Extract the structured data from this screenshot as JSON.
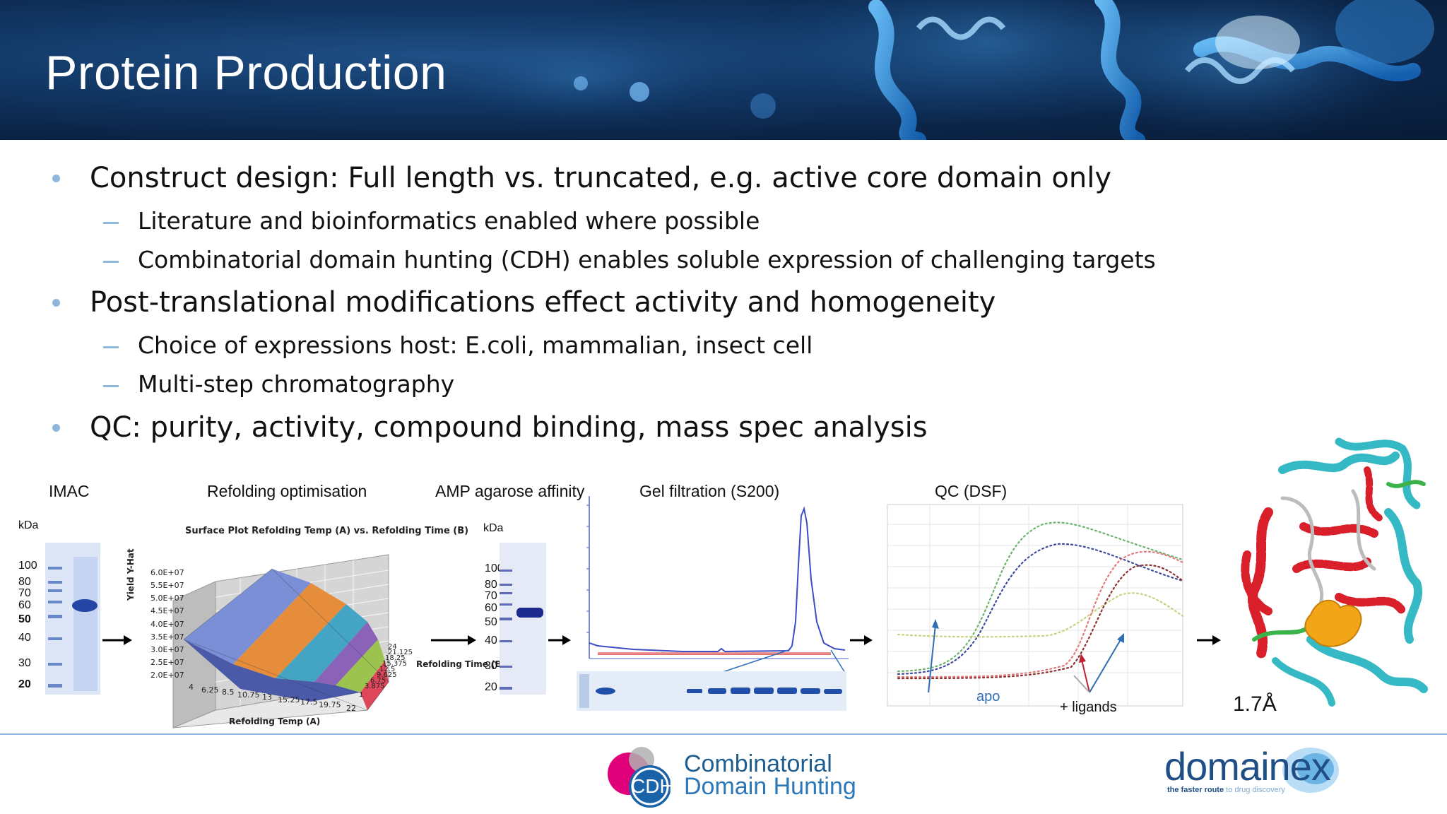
{
  "header": {
    "title": "Protein Production"
  },
  "bullets": [
    {
      "text": "Construct design: Full length vs. truncated, e.g. active core domain only",
      "sub": [
        "Literature and bioinformatics enabled where possible",
        "Combinatorial domain hunting (CDH) enables soluble expression of challenging targets"
      ]
    },
    {
      "text": "Post-translational modifications effect activity and homogeneity",
      "sub": [
        "Choice of expressions host: E.coli, mammalian, insect cell",
        "Multi-step chromatography"
      ]
    },
    {
      "text": "QC: purity, activity, compound binding, mass spec analysis",
      "sub": []
    }
  ],
  "workflow": {
    "steps": [
      "IMAC",
      "Refolding optimisation",
      "AMP agarose affinity",
      "Gel filtration (S200)",
      "QC (DSF)"
    ],
    "imac_gel": {
      "unit": "kDa",
      "markers": [
        "100",
        "80",
        "70",
        "60",
        "50",
        "40",
        "30",
        "20"
      ]
    },
    "refolding_plot": {
      "title": "Surface Plot Refolding Temp (A) vs. Refolding Time (B)",
      "z_axis_label": "Yield Y-Hat",
      "z_ticks": [
        "6.0E+07",
        "5.5E+07",
        "5.0E+07",
        "4.5E+07",
        "4.0E+07",
        "3.5E+07",
        "3.0E+07",
        "2.5E+07",
        "2.0E+07"
      ],
      "x_axis_label": "Refolding Temp (A)",
      "x_ticks": [
        "4",
        "6.25",
        "8.5",
        "10.75",
        "13",
        "15.25",
        "17.5",
        "19.75",
        "22"
      ],
      "y_axis_label": "Refolding Time (B)",
      "y_ticks": [
        "24",
        "21.125",
        "18.25",
        "15.375",
        "12.5",
        "9.625",
        "6.75",
        "3.875",
        "1"
      ]
    },
    "amp_gel": {
      "unit": "kDa",
      "markers": [
        "100",
        "80",
        "70",
        "60",
        "50",
        "40",
        "30",
        "20"
      ]
    },
    "dsf": {
      "apo_label": "apo",
      "ligands_label": "+ ligands"
    },
    "structure": {
      "resolution": "1.7Å"
    }
  },
  "footer": {
    "cdh_logo_text": "CDH",
    "cdh_name_line1": "Combinatorial",
    "cdh_name_line2": "Domain Hunting",
    "company": "domainex",
    "tagline_a": "the faster route",
    "tagline_b": " to drug discovery"
  },
  "colors": {
    "bullet_marker": "#8fb7dc",
    "header_bg": "#0b2447",
    "brand_blue": "#1f4f86",
    "cdh_magenta": "#e0007a"
  }
}
